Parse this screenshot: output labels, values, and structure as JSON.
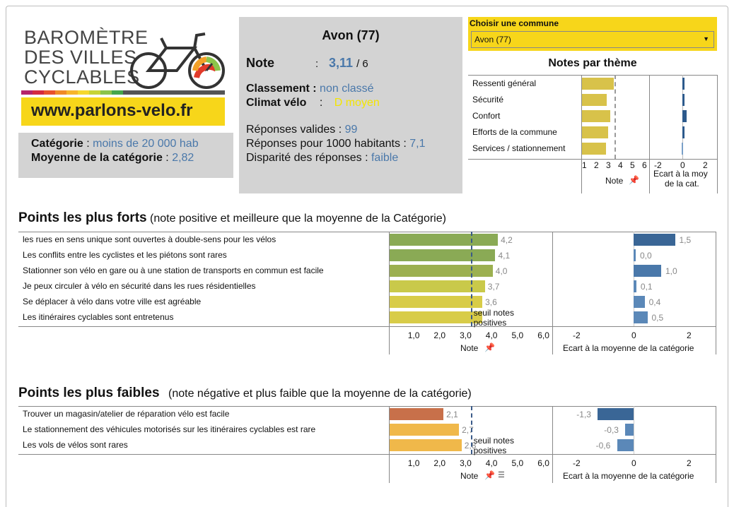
{
  "logo": {
    "line1": "BAROMÈTRE",
    "line2": "DES VILLES",
    "line3": "CYCLABLES",
    "url": "www.parlons-velo.fr"
  },
  "category": {
    "label": "Catégorie",
    "value": "moins de 20 000  hab",
    "avg_label": "Moyenne de la catégorie",
    "avg_value": "2,82"
  },
  "city": {
    "title": "Avon (77)",
    "note_label": "Note",
    "note_sep": ":",
    "note_value": "3,11",
    "note_max": "/ 6",
    "classement_label": "Classement :",
    "classement_value": "non classé",
    "climat_label": "Climat vélo",
    "climat_sep": ":",
    "climat_value": "D  moyen",
    "reponses_label": "Réponses valides :",
    "reponses_value": "99",
    "reponses1000_label": "Réponses pour 1000 habitants :",
    "reponses1000_value": "7,1",
    "disparite_label": "Disparité des réponses :",
    "disparite_value": "faible"
  },
  "commune_select": {
    "label": "Choisir une commune",
    "value": "Avon (77)"
  },
  "themes": {
    "title": "Notes par thème",
    "items": [
      {
        "label": "Ressenti général",
        "note": 3.45,
        "ecart": 0.2
      },
      {
        "label": "Sécurité",
        "note": 2.9,
        "ecart": 0.2
      },
      {
        "label": "Confort",
        "note": 3.2,
        "ecart": 0.4
      },
      {
        "label": "Efforts de la commune",
        "note": 3.0,
        "ecart": 0.2
      },
      {
        "label": "Services  /  stationnement",
        "note": 2.85,
        "ecart": -0.05
      }
    ],
    "note_ticks": [
      "1",
      "2",
      "3",
      "4",
      "5",
      "6"
    ],
    "ecart_ticks": [
      "-2",
      "0",
      "2"
    ],
    "note_axis_label": "Note",
    "ecart_axis_label_1": "Ecart à la moy",
    "ecart_axis_label_2": "de la cat."
  },
  "strong": {
    "title": "Points les plus forts",
    "subtitle": "(note positive et meilleure que la moyenne de la Catégorie)",
    "items": [
      {
        "label": "les rues en sens unique sont ouvertes à double-sens pour les vélos",
        "note": 4.2,
        "note_label": "4,2",
        "ecart": 1.5,
        "ecart_label": "1,5",
        "color": "#8aaa55",
        "ecart_color": "#3a6696"
      },
      {
        "label": "Les conflits entre les cyclistes et les piétons sont rares",
        "note": 4.1,
        "note_label": "4,1",
        "ecart": 0.0,
        "ecart_label": "0,0",
        "color": "#8aaa55",
        "ecart_color": "#5b88b8"
      },
      {
        "label": "Stationner son vélo en gare ou à une station de transports en commun est facile",
        "note": 4.0,
        "note_label": "4,0",
        "ecart": 1.0,
        "ecart_label": "1,0",
        "color": "#9cb050",
        "ecart_color": "#4a78aa"
      },
      {
        "label": "Je peux circuler à vélo en sécurité dans les rues résidentielles",
        "note": 3.7,
        "note_label": "3,7",
        "ecart": 0.1,
        "ecart_label": "0,1",
        "color": "#c9c94a",
        "ecart_color": "#5b88b8"
      },
      {
        "label": "Se déplacer à vélo dans votre ville est agréable",
        "note": 3.6,
        "note_label": "3,6",
        "ecart": 0.4,
        "ecart_label": "0,4",
        "color": "#d8cc48",
        "ecart_color": "#5b88b8"
      },
      {
        "label": "Les itinéraires cyclables sont entretenus",
        "note": 3.6,
        "note_label": "",
        "ecart": 0.5,
        "ecart_label": "0,5",
        "color": "#d8cc48",
        "ecart_color": "#5b88b8"
      }
    ],
    "threshold_label_1": "seuil notes",
    "threshold_label_2": "positives"
  },
  "weak": {
    "title": "Points les plus faibles",
    "subtitle": "(note négative et plus faible que la moyenne de la catégorie)",
    "items": [
      {
        "label": "Trouver un magasin/atelier de réparation vélo est facile",
        "note": 2.1,
        "note_label": "2,1",
        "ecart": -1.3,
        "ecart_label": "-1,3",
        "color": "#c8704a",
        "ecart_color": "#3a6696"
      },
      {
        "label": "Le stationnement des véhicules motorisés sur les itinéraires cyclables est rare",
        "note": 2.7,
        "note_label": "2,7",
        "ecart": -0.3,
        "ecart_label": "-0,3",
        "color": "#f0b84a",
        "ecart_color": "#5b88b8"
      },
      {
        "label": "Les vols de vélos  sont rares",
        "note": 2.8,
        "note_label": "2,8",
        "ecart": -0.6,
        "ecart_label": "-0,6",
        "color": "#f0b84a",
        "ecart_color": "#5b88b8"
      }
    ],
    "threshold_label_1": "seuil notes",
    "threshold_label_2": "positives"
  },
  "axes": {
    "note_ticks": [
      "1,0",
      "2,0",
      "3,0",
      "4,0",
      "5,0",
      "6,0"
    ],
    "ecart_ticks": [
      "-2",
      "0",
      "2"
    ],
    "note_label": "Note",
    "ecart_label": "Ecart à la moyenne de la catégorie"
  },
  "chart_data": [
    {
      "type": "bar",
      "title": "Notes par thème",
      "categories": [
        "Ressenti général",
        "Sécurité",
        "Confort",
        "Efforts de la commune",
        "Services  /  stationnement"
      ],
      "series": [
        {
          "name": "Note",
          "values": [
            3.45,
            2.9,
            3.2,
            3.0,
            2.85
          ]
        },
        {
          "name": "Ecart à la moy de la cat.",
          "values": [
            0.2,
            0.2,
            0.4,
            0.2,
            -0.05
          ]
        }
      ]
    },
    {
      "type": "bar",
      "title": "Points les plus forts",
      "categories": [
        "les rues en sens unique sont ouvertes à double-sens pour les vélos",
        "Les conflits entre les cyclistes et les piétons sont rares",
        "Stationner son vélo en gare ou à une station de transports en commun est facile",
        "Je peux circuler à vélo en sécurité dans les rues résidentielles",
        "Se déplacer à vélo dans votre ville est agréable",
        "Les itinéraires cyclables sont entretenus"
      ],
      "series": [
        {
          "name": "Note",
          "values": [
            4.2,
            4.1,
            4.0,
            3.7,
            3.6,
            3.6
          ]
        },
        {
          "name": "Ecart à la moyenne de la catégorie",
          "values": [
            1.5,
            0.0,
            1.0,
            0.1,
            0.4,
            0.5
          ]
        }
      ]
    },
    {
      "type": "bar",
      "title": "Points les plus faibles",
      "categories": [
        "Trouver un magasin/atelier de réparation vélo est facile",
        "Le stationnement des véhicules motorisés sur les itinéraires cyclables est rare",
        "Les vols de vélos  sont rares"
      ],
      "series": [
        {
          "name": "Note",
          "values": [
            2.1,
            2.7,
            2.8
          ]
        },
        {
          "name": "Ecart à la moyenne de la catégorie",
          "values": [
            -1.3,
            -0.3,
            -0.6
          ]
        }
      ]
    }
  ]
}
